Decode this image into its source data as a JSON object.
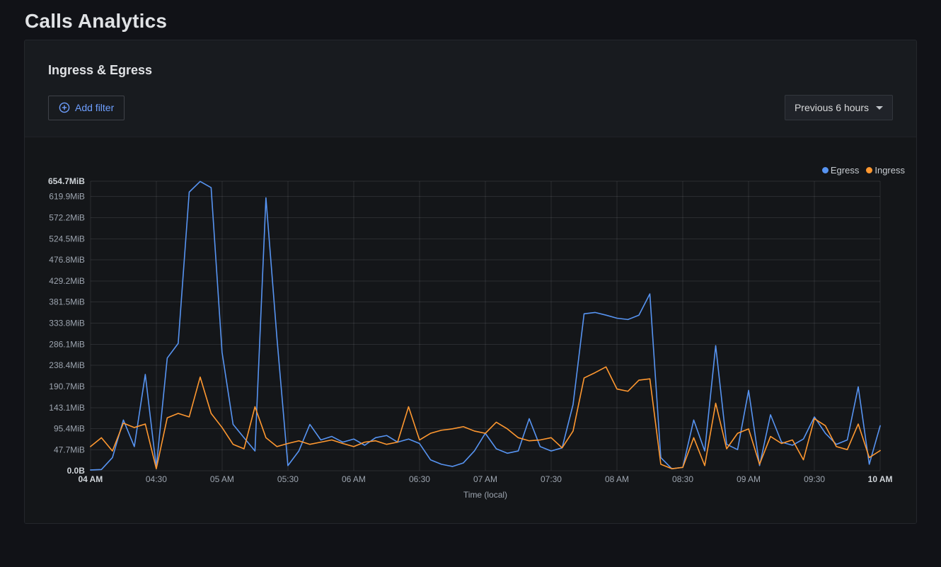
{
  "page": {
    "title": "Calls Analytics"
  },
  "panel": {
    "title": "Ingress & Egress",
    "add_filter_label": "Add filter",
    "time_range_label": "Previous 6 hours"
  },
  "colors": {
    "background": "#111217",
    "card": "#181b1f",
    "link_accent": "#6e9fff",
    "egress": "#5794f2",
    "ingress": "#ff9830"
  },
  "chart_data": {
    "type": "line",
    "title": "Ingress & Egress",
    "xlabel": "Time (local)",
    "ylabel": "",
    "unit": "MiB",
    "grid": true,
    "legend_position": "top-right",
    "ylim": [
      0,
      654.7
    ],
    "y_ticks": [
      {
        "label": "654.7MiB",
        "value": 654.7
      },
      {
        "label": "619.9MiB",
        "value": 619.9
      },
      {
        "label": "572.2MiB",
        "value": 572.2
      },
      {
        "label": "524.5MiB",
        "value": 524.5
      },
      {
        "label": "476.8MiB",
        "value": 476.8
      },
      {
        "label": "429.2MiB",
        "value": 429.2
      },
      {
        "label": "381.5MiB",
        "value": 381.5
      },
      {
        "label": "333.8MiB",
        "value": 333.8
      },
      {
        "label": "286.1MiB",
        "value": 286.1
      },
      {
        "label": "238.4MiB",
        "value": 238.4
      },
      {
        "label": "190.7MiB",
        "value": 190.7
      },
      {
        "label": "143.1MiB",
        "value": 143.1
      },
      {
        "label": "95.4MiB",
        "value": 95.4
      },
      {
        "label": "47.7MiB",
        "value": 47.7
      },
      {
        "label": "0.0B",
        "value": 0
      }
    ],
    "x_tick_labels": [
      "04 AM",
      "04:30",
      "05 AM",
      "05:30",
      "06 AM",
      "06:30",
      "07 AM",
      "07:30",
      "08 AM",
      "08:30",
      "09 AM",
      "09:30",
      "10 AM"
    ],
    "x": [
      "04:00",
      "04:05",
      "04:10",
      "04:15",
      "04:20",
      "04:25",
      "04:30",
      "04:35",
      "04:40",
      "04:45",
      "04:50",
      "04:55",
      "05:00",
      "05:05",
      "05:10",
      "05:15",
      "05:20",
      "05:25",
      "05:30",
      "05:35",
      "05:40",
      "05:45",
      "05:50",
      "05:55",
      "06:00",
      "06:05",
      "06:10",
      "06:15",
      "06:20",
      "06:25",
      "06:30",
      "06:35",
      "06:40",
      "06:45",
      "06:50",
      "06:55",
      "07:00",
      "07:05",
      "07:10",
      "07:15",
      "07:20",
      "07:25",
      "07:30",
      "07:35",
      "07:40",
      "07:45",
      "07:50",
      "07:55",
      "08:00",
      "08:05",
      "08:10",
      "08:15",
      "08:20",
      "08:25",
      "08:30",
      "08:35",
      "08:40",
      "08:45",
      "08:50",
      "08:55",
      "09:00",
      "09:05",
      "09:10",
      "09:15",
      "09:20",
      "09:25",
      "09:30",
      "09:35",
      "09:40",
      "09:45",
      "09:50",
      "09:55",
      "10:00"
    ],
    "series": [
      {
        "name": "Egress",
        "color": "#5794f2",
        "values": [
          2,
          3,
          30,
          115,
          55,
          218,
          8,
          255,
          288,
          630,
          654,
          640,
          268,
          105,
          75,
          45,
          617,
          300,
          12,
          45,
          105,
          70,
          78,
          65,
          72,
          58,
          75,
          80,
          65,
          72,
          62,
          25,
          15,
          10,
          18,
          45,
          85,
          50,
          40,
          45,
          118,
          55,
          45,
          52,
          150,
          355,
          358,
          352,
          345,
          342,
          352,
          400,
          30,
          5,
          8,
          115,
          45,
          283,
          60,
          48,
          182,
          12,
          127,
          65,
          58,
          72,
          122,
          85,
          60,
          70,
          190,
          15,
          102
        ]
      },
      {
        "name": "Ingress",
        "color": "#ff9830",
        "values": [
          55,
          75,
          45,
          108,
          98,
          106,
          5,
          120,
          130,
          122,
          212,
          130,
          98,
          60,
          50,
          145,
          75,
          55,
          62,
          68,
          60,
          65,
          70,
          62,
          55,
          65,
          68,
          60,
          65,
          145,
          70,
          85,
          92,
          95,
          100,
          90,
          85,
          110,
          95,
          75,
          68,
          70,
          75,
          52,
          90,
          210,
          222,
          235,
          185,
          180,
          205,
          208,
          15,
          5,
          8,
          75,
          12,
          153,
          50,
          85,
          95,
          15,
          78,
          62,
          70,
          25,
          118,
          102,
          55,
          48,
          106,
          30,
          46
        ]
      }
    ]
  }
}
